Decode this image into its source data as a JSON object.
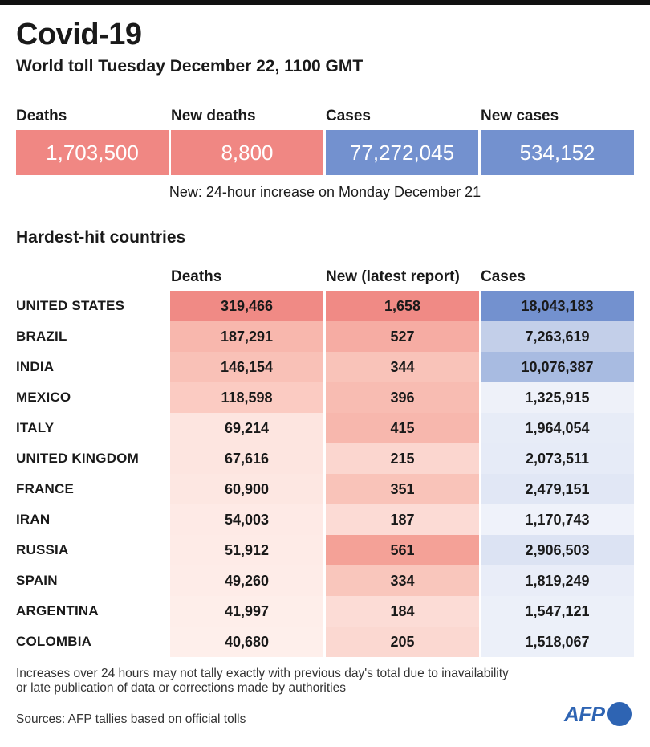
{
  "header": {
    "title": "Covid-19",
    "subtitle": "World toll Tuesday December 22, 1100 GMT"
  },
  "kpis": [
    {
      "label": "Deaths",
      "value": "1,703,500",
      "color": "#f08783"
    },
    {
      "label": "New deaths",
      "value": "8,800",
      "color": "#f08783"
    },
    {
      "label": "Cases",
      "value": "77,272,045",
      "color": "#7391cf"
    },
    {
      "label": "New cases",
      "value": "534,152",
      "color": "#7391cf"
    }
  ],
  "note": "New: 24-hour increase on Monday December 21",
  "section_title": "Hardest-hit countries",
  "columns": {
    "deaths": "Deaths",
    "new": "New (latest report)",
    "cases": "Cases"
  },
  "rows": [
    {
      "country": "UNITED STATES",
      "deaths": "319,466",
      "new": "1,658",
      "cases": "18,043,183",
      "deaths_color": "#f08a85",
      "new_color": "#f08a85",
      "cases_color": "#7391cf"
    },
    {
      "country": "BRAZIL",
      "deaths": "187,291",
      "new": "527",
      "cases": "7,263,619",
      "deaths_color": "#f8b7ad",
      "new_color": "#f6aca3",
      "cases_color": "#c3cfe9"
    },
    {
      "country": "INDIA",
      "deaths": "146,154",
      "new": "344",
      "cases": "10,076,387",
      "deaths_color": "#f9c1b7",
      "new_color": "#f9c3b9",
      "cases_color": "#a8bbe1"
    },
    {
      "country": "MEXICO",
      "deaths": "118,598",
      "new": "396",
      "cases": "1,325,915",
      "deaths_color": "#fbcbc2",
      "new_color": "#f8bcb2",
      "cases_color": "#eef1f9"
    },
    {
      "country": "ITALY",
      "deaths": "69,214",
      "new": "415",
      "cases": "1,964,054",
      "deaths_color": "#fde5e0",
      "new_color": "#f7b7ad",
      "cases_color": "#e7ecf7"
    },
    {
      "country": "UNITED KINGDOM",
      "deaths": "67,616",
      "new": "215",
      "cases": "2,073,511",
      "deaths_color": "#fde5e0",
      "new_color": "#fbd6cf",
      "cases_color": "#e6ebf7"
    },
    {
      "country": "FRANCE",
      "deaths": "60,900",
      "new": "351",
      "cases": "2,479,151",
      "deaths_color": "#fde7e2",
      "new_color": "#f9c3b9",
      "cases_color": "#e1e7f5"
    },
    {
      "country": "IRAN",
      "deaths": "54,003",
      "new": "187",
      "cases": "1,170,743",
      "deaths_color": "#feeae6",
      "new_color": "#fcdbd5",
      "cases_color": "#eff2fa"
    },
    {
      "country": "RUSSIA",
      "deaths": "51,912",
      "new": "561",
      "cases": "2,906,503",
      "deaths_color": "#feebe7",
      "new_color": "#f4a197",
      "cases_color": "#dce3f3"
    },
    {
      "country": "SPAIN",
      "deaths": "49,260",
      "new": "334",
      "cases": "1,819,249",
      "deaths_color": "#feece8",
      "new_color": "#f9c6bc",
      "cases_color": "#e9edf8"
    },
    {
      "country": "ARGENTINA",
      "deaths": "41,997",
      "new": "184",
      "cases": "1,547,121",
      "deaths_color": "#feeeea",
      "new_color": "#fcdcd6",
      "cases_color": "#ecf0f9"
    },
    {
      "country": "COLOMBIA",
      "deaths": "40,680",
      "new": "205",
      "cases": "1,518,067",
      "deaths_color": "#feefeb",
      "new_color": "#fbd8d1",
      "cases_color": "#ecf0f9"
    }
  ],
  "footnote_line1": "Increases over 24 hours may not tally exactly with previous day's total due to inavailability",
  "footnote_line2": "or late publication of data or corrections made by authorities",
  "sources": "Sources: AFP tallies based on official tolls",
  "logo": "AFP"
}
